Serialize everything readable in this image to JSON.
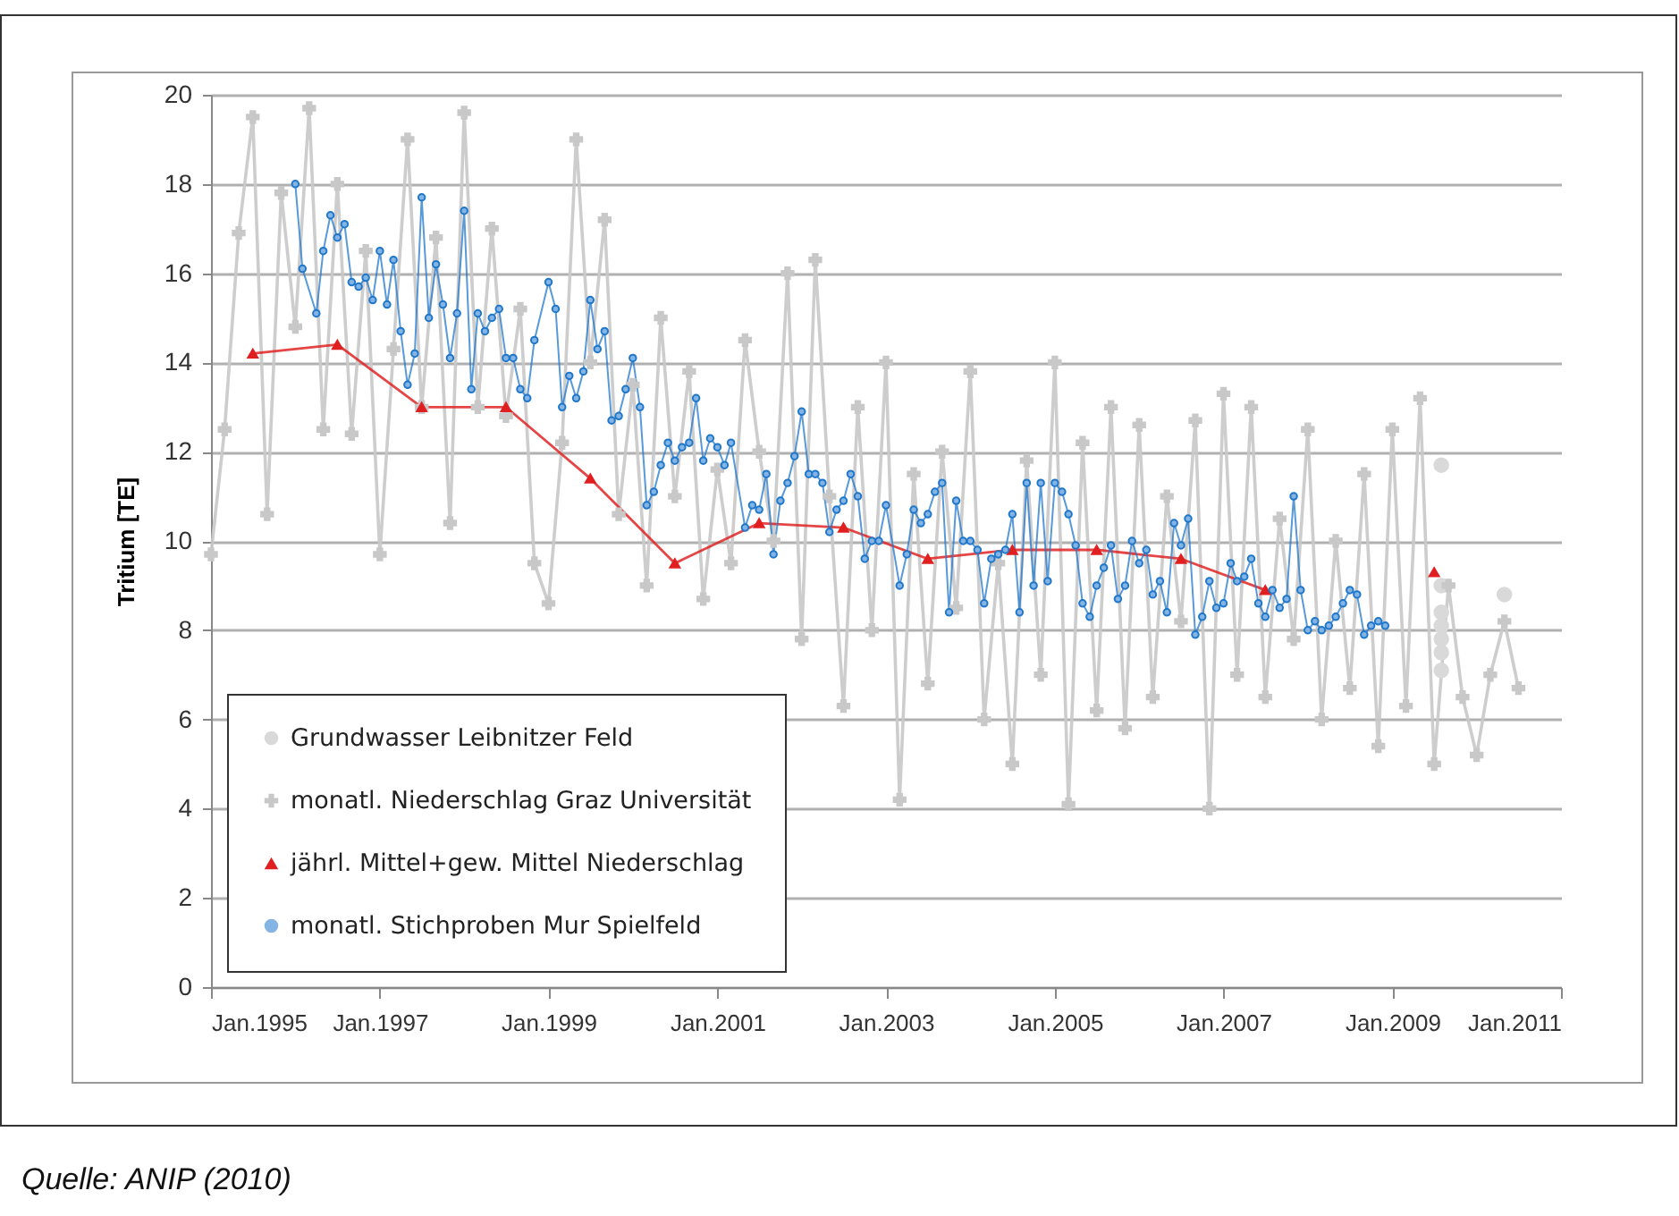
{
  "chart_data": {
    "type": "line",
    "ylabel": "Tritium [TE]",
    "annotations": [
      "Quelle: ANIP (2010)"
    ],
    "xlim": [
      "1995-01",
      "2011-01"
    ],
    "xticks": [
      {
        "value": "1995-01",
        "label": "Jan.1995"
      },
      {
        "value": "1997-01",
        "label": "Jan.1997"
      },
      {
        "value": "1999-01",
        "label": "Jan.1999"
      },
      {
        "value": "2001-01",
        "label": "Jan.2001"
      },
      {
        "value": "2003-01",
        "label": "Jan.2003"
      },
      {
        "value": "2005-01",
        "label": "Jan.2005"
      },
      {
        "value": "2007-01",
        "label": "Jan.2007"
      },
      {
        "value": "2009-01",
        "label": "Jan.2009"
      },
      {
        "value": "2011-01",
        "label": "Jan.2011"
      }
    ],
    "ylim": [
      0,
      20
    ],
    "yticks": [
      0,
      2,
      4,
      6,
      8,
      10,
      12,
      14,
      16,
      18,
      20
    ],
    "grid": "y",
    "legend": "bottom left",
    "series": [
      {
        "name": "Grundwasser Leibnitzer  Feld",
        "type": "scatter",
        "marker": "circle",
        "color": "#d9d9d9",
        "x": [
          "2009-08",
          "2009-08",
          "2009-08",
          "2009-08",
          "2009-08",
          "2009-08",
          "2009-08",
          "2010-05"
        ],
        "values": [
          11.7,
          9.0,
          8.4,
          8.1,
          7.8,
          7.5,
          7.1,
          8.8
        ]
      },
      {
        "name": "monatl. Niederschlag Graz Universität",
        "type": "line",
        "marker": "cross",
        "color": "#c8c8c8",
        "x": [
          "1995-01",
          "1995-03",
          "1995-05",
          "1995-07",
          "1995-09",
          "1995-11",
          "1996-01",
          "1996-03",
          "1996-05",
          "1996-07",
          "1996-09",
          "1996-11",
          "1997-01",
          "1997-03",
          "1997-05",
          "1997-07",
          "1997-09",
          "1997-11",
          "1998-01",
          "1998-03",
          "1998-05",
          "1998-07",
          "1998-09",
          "1998-11",
          "1999-01",
          "1999-03",
          "1999-05",
          "1999-07",
          "1999-09",
          "1999-11",
          "2000-01",
          "2000-03",
          "2000-05",
          "2000-07",
          "2000-09",
          "2000-11",
          "2001-01",
          "2001-03",
          "2001-05",
          "2001-07",
          "2001-09",
          "2001-11",
          "2002-01",
          "2002-03",
          "2002-05",
          "2002-07",
          "2002-09",
          "2002-11",
          "2003-01",
          "2003-03",
          "2003-05",
          "2003-07",
          "2003-09",
          "2003-11",
          "2004-01",
          "2004-03",
          "2004-05",
          "2004-07",
          "2004-09",
          "2004-11",
          "2005-01",
          "2005-03",
          "2005-05",
          "2005-07",
          "2005-09",
          "2005-11",
          "2006-01",
          "2006-03",
          "2006-05",
          "2006-07",
          "2006-09",
          "2006-11",
          "2007-01",
          "2007-03",
          "2007-05",
          "2007-07",
          "2007-09",
          "2007-11",
          "2008-01",
          "2008-03",
          "2008-05",
          "2008-07",
          "2008-09",
          "2008-11",
          "2009-01",
          "2009-03",
          "2009-05",
          "2009-07",
          "2009-09",
          "2009-11",
          "2010-01",
          "2010-03",
          "2010-05",
          "2010-07"
        ],
        "values": [
          9.7,
          12.5,
          16.9,
          19.5,
          10.6,
          17.8,
          14.8,
          19.7,
          12.5,
          18.0,
          12.4,
          16.5,
          9.7,
          14.3,
          19.0,
          13.0,
          16.8,
          10.4,
          19.6,
          13.0,
          17.0,
          12.8,
          15.2,
          9.5,
          8.6,
          12.2,
          19.0,
          14.0,
          17.2,
          10.6,
          13.5,
          9.0,
          15.0,
          11.0,
          13.8,
          8.7,
          11.6,
          9.5,
          14.5,
          12.0,
          10.0,
          16.0,
          7.8,
          16.3,
          11.0,
          6.3,
          13.0,
          8.0,
          14.0,
          4.2,
          11.5,
          6.8,
          12.0,
          8.5,
          13.8,
          6.0,
          9.5,
          5.0,
          11.8,
          7.0,
          14.0,
          4.1,
          12.2,
          6.2,
          13.0,
          5.8,
          12.6,
          6.5,
          11.0,
          8.2,
          12.7,
          4.0,
          13.3,
          7.0,
          13.0,
          6.5,
          10.5,
          7.8,
          12.5,
          6.0,
          10.0,
          6.7,
          11.5,
          5.4,
          12.5,
          6.3,
          13.2,
          5.0,
          9.0,
          6.5,
          5.2,
          7.0,
          8.2,
          6.7
        ]
      },
      {
        "name": "jährl. Mittel+gew. Mittel Niederschlag",
        "type": "line",
        "marker": "triangle",
        "color": "#e02020",
        "x": [
          "1995-07",
          "1996-07",
          "1997-07",
          "1998-07",
          "1999-07",
          "2000-07",
          "2001-07",
          "2002-07",
          "2003-07",
          "2004-07",
          "2005-07",
          "2006-07",
          "2007-07",
          "2008-07",
          "2009-07"
        ],
        "values": [
          14.2,
          14.4,
          13.0,
          13.0,
          11.4,
          9.5,
          10.4,
          10.3,
          9.6,
          9.8,
          9.8,
          9.6,
          8.9,
          null,
          9.3
        ]
      },
      {
        "name": "monatl. Stichproben Mur Spielfeld",
        "type": "line",
        "marker": "circle",
        "color": "#1f77cc",
        "x": [
          "1996-01",
          "1996-02",
          "1996-04",
          "1996-05",
          "1996-06",
          "1996-07",
          "1996-08",
          "1996-09",
          "1996-10",
          "1996-11",
          "1996-12",
          "1997-01",
          "1997-02",
          "1997-03",
          "1997-04",
          "1997-05",
          "1997-06",
          "1997-07",
          "1997-08",
          "1997-09",
          "1997-10",
          "1997-11",
          "1997-12",
          "1998-01",
          "1998-02",
          "1998-03",
          "1998-04",
          "1998-05",
          "1998-06",
          "1998-07",
          "1998-08",
          "1998-09",
          "1998-10",
          "1998-11",
          "1999-01",
          "1999-02",
          "1999-03",
          "1999-04",
          "1999-05",
          "1999-06",
          "1999-07",
          "1999-08",
          "1999-09",
          "1999-10",
          "1999-11",
          "1999-12",
          "2000-01",
          "2000-02",
          "2000-03",
          "2000-04",
          "2000-05",
          "2000-06",
          "2000-07",
          "2000-08",
          "2000-09",
          "2000-10",
          "2000-11",
          "2000-12",
          "2001-01",
          "2001-02",
          "2001-03",
          "2001-05",
          "2001-06",
          "2001-07",
          "2001-08",
          "2001-09",
          "2001-10",
          "2001-11",
          "2001-12",
          "2002-01",
          "2002-02",
          "2002-03",
          "2002-04",
          "2002-05",
          "2002-06",
          "2002-07",
          "2002-08",
          "2002-09",
          "2002-10",
          "2002-11",
          "2002-12",
          "2003-01",
          "2003-03",
          "2003-04",
          "2003-05",
          "2003-06",
          "2003-07",
          "2003-08",
          "2003-09",
          "2003-10",
          "2003-11",
          "2003-12",
          "2004-01",
          "2004-02",
          "2004-03",
          "2004-04",
          "2004-05",
          "2004-06",
          "2004-07",
          "2004-08",
          "2004-09",
          "2004-10",
          "2004-11",
          "2004-12",
          "2005-01",
          "2005-02",
          "2005-03",
          "2005-04",
          "2005-05",
          "2005-06",
          "2005-07",
          "2005-08",
          "2005-09",
          "2005-10",
          "2005-11",
          "2005-12",
          "2006-01",
          "2006-02",
          "2006-03",
          "2006-04",
          "2006-05",
          "2006-06",
          "2006-07",
          "2006-08",
          "2006-09",
          "2006-10",
          "2006-11",
          "2006-12",
          "2007-01",
          "2007-02",
          "2007-03",
          "2007-04",
          "2007-05",
          "2007-06",
          "2007-07",
          "2007-08",
          "2007-09",
          "2007-10",
          "2007-11",
          "2007-12",
          "2008-01",
          "2008-02",
          "2008-03",
          "2008-04",
          "2008-05",
          "2008-06",
          "2008-07",
          "2008-08",
          "2008-09",
          "2008-10",
          "2008-11",
          "2008-12"
        ],
        "values": [
          18.0,
          16.1,
          15.1,
          16.5,
          17.3,
          16.8,
          17.1,
          15.8,
          15.7,
          15.9,
          15.4,
          16.5,
          15.3,
          16.3,
          14.7,
          13.5,
          14.2,
          17.7,
          15.0,
          16.2,
          15.3,
          14.1,
          15.1,
          17.4,
          13.4,
          15.1,
          14.7,
          15.0,
          15.2,
          14.1,
          14.1,
          13.4,
          13.2,
          14.5,
          15.8,
          15.2,
          13.0,
          13.7,
          13.2,
          13.8,
          15.4,
          14.3,
          14.7,
          12.7,
          12.8,
          13.4,
          14.1,
          13.0,
          10.8,
          11.1,
          11.7,
          12.2,
          11.8,
          12.1,
          12.2,
          13.2,
          11.8,
          12.3,
          12.1,
          11.7,
          12.2,
          10.3,
          10.8,
          10.7,
          11.5,
          9.7,
          10.9,
          11.3,
          11.9,
          12.9,
          11.5,
          11.5,
          11.3,
          10.2,
          10.7,
          10.9,
          11.5,
          11.0,
          9.6,
          10.0,
          10.0,
          10.8,
          9.0,
          9.7,
          10.7,
          10.4,
          10.6,
          11.1,
          11.3,
          8.4,
          10.9,
          10.0,
          10.0,
          9.8,
          8.6,
          9.6,
          9.7,
          9.8,
          10.6,
          8.4,
          11.3,
          9.0,
          11.3,
          9.1,
          11.3,
          11.1,
          10.6,
          9.9,
          8.6,
          8.3,
          9.0,
          9.4,
          9.9,
          8.7,
          9.0,
          10.0,
          9.5,
          9.8,
          8.8,
          9.1,
          8.4,
          10.4,
          9.9,
          10.5,
          7.9,
          8.3,
          9.1,
          8.5,
          8.6,
          9.5,
          9.1,
          9.2,
          9.6,
          8.6,
          8.3,
          8.9,
          8.5,
          8.7,
          11.0,
          8.9,
          8.0,
          8.2,
          8.0,
          8.1,
          8.3,
          8.6,
          8.9,
          8.8,
          7.9,
          8.1,
          8.2,
          8.1
        ]
      }
    ]
  }
}
